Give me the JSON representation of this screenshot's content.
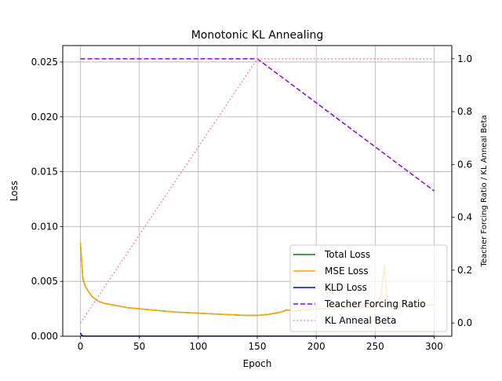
{
  "chart_data": {
    "type": "line",
    "title": "Monotonic KL Annealing",
    "xlabel": "Epoch",
    "ylabel": "Loss",
    "y2label": "Teacher Forcing Ratio / KL Anneal Beta",
    "xlim": [
      -15,
      315
    ],
    "ylim": [
      0,
      0.0265
    ],
    "y2lim": [
      -0.05,
      1.05
    ],
    "x_ticks": [
      0,
      50,
      100,
      150,
      200,
      250,
      300
    ],
    "y_ticks": [
      0.0,
      0.005,
      0.01,
      0.015,
      0.02,
      0.025
    ],
    "y_tick_labels": [
      "0.000",
      "0.005",
      "0.010",
      "0.015",
      "0.020",
      "0.025"
    ],
    "y2_ticks": [
      0.0,
      0.2,
      0.4,
      0.6,
      0.8,
      1.0
    ],
    "y2_tick_labels": [
      "0.0",
      "0.2",
      "0.4",
      "0.6",
      "0.8",
      "1.0"
    ],
    "grid": true,
    "legend_position": "lower-right",
    "series": [
      {
        "name": "Total Loss",
        "axis": "left",
        "color": "#008000",
        "style": "solid",
        "x": [
          0,
          2,
          4,
          6,
          8,
          10,
          15,
          20,
          30,
          40,
          50,
          60,
          80,
          100,
          120,
          140,
          150,
          160,
          170,
          175,
          180,
          190,
          200,
          210,
          220,
          230,
          240,
          250,
          255,
          258,
          260,
          265,
          270,
          280,
          290,
          300
        ],
        "y": [
          0.0085,
          0.0053,
          0.0046,
          0.0042,
          0.0039,
          0.0036,
          0.0032,
          0.003,
          0.0028,
          0.0026,
          0.0025,
          0.0024,
          0.0022,
          0.0021,
          0.002,
          0.0019,
          0.0019,
          0.002,
          0.0022,
          0.0024,
          0.0023,
          0.0024,
          0.0025,
          0.0025,
          0.0025,
          0.0026,
          0.0026,
          0.0026,
          0.0038,
          0.0065,
          0.003,
          0.0026,
          0.0027,
          0.0027,
          0.0028,
          0.0029
        ]
      },
      {
        "name": "MSE Loss",
        "axis": "left",
        "color": "#ffa500",
        "style": "solid",
        "x": [
          0,
          2,
          4,
          6,
          8,
          10,
          15,
          20,
          30,
          40,
          50,
          60,
          80,
          100,
          120,
          140,
          150,
          160,
          170,
          175,
          180,
          190,
          200,
          210,
          220,
          230,
          240,
          250,
          255,
          258,
          260,
          265,
          270,
          280,
          290,
          300
        ],
        "y": [
          0.0085,
          0.0053,
          0.0046,
          0.0042,
          0.0039,
          0.0036,
          0.0032,
          0.003,
          0.0028,
          0.0026,
          0.0025,
          0.0024,
          0.0022,
          0.0021,
          0.002,
          0.0019,
          0.0019,
          0.002,
          0.0022,
          0.0024,
          0.0023,
          0.0024,
          0.0025,
          0.0025,
          0.0025,
          0.0026,
          0.0026,
          0.0026,
          0.0038,
          0.0065,
          0.003,
          0.0026,
          0.0027,
          0.0027,
          0.0028,
          0.0029
        ]
      },
      {
        "name": "KLD Loss",
        "axis": "left",
        "color": "#0000ff",
        "style": "solid",
        "x": [
          0,
          1,
          2,
          5,
          300
        ],
        "y": [
          0.0003,
          0.0001,
          3e-05,
          1e-05,
          1e-05
        ]
      },
      {
        "name": "Teacher Forcing Ratio",
        "axis": "right",
        "color": "#9400d3",
        "style": "dashed",
        "x": [
          0,
          150,
          300
        ],
        "y": [
          1.0,
          1.0,
          0.5
        ]
      },
      {
        "name": "KL Anneal Beta",
        "axis": "right",
        "color": "#ff69b4",
        "style": "dotted",
        "x": [
          0,
          150,
          300
        ],
        "y": [
          0.0,
          1.0,
          1.0
        ]
      }
    ]
  }
}
